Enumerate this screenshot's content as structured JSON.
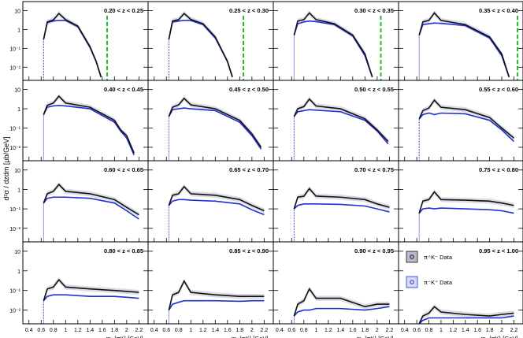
{
  "figure": {
    "ylabel": "d²σ / dzdm [μb/GeV]",
    "xlabel": "m_{πK} [GeV]",
    "yticks": [
      "10",
      "1",
      "10⁻¹",
      "10⁻²"
    ],
    "xticks": [
      "0.4",
      "0.6",
      "0.8",
      "1",
      "1.2",
      "1.4",
      "1.6",
      "1.8",
      "2",
      "2.2"
    ],
    "legend": [
      {
        "label": "π⁺K⁻ Data",
        "color": "#111111"
      },
      {
        "label": "π⁻K⁺ Data",
        "color": "#1f2fd6"
      }
    ],
    "colors": {
      "black_series": "#111111",
      "blue_series": "#1f2fd6",
      "cutoff": "#22bb22",
      "band": "#9a9ab8"
    }
  },
  "chart_data": [
    {
      "type": "line",
      "panel": 1,
      "title": "0.20 < z < 0.25",
      "x": [
        0.64,
        0.7,
        0.8,
        0.89,
        1.0,
        1.2,
        1.4,
        1.5,
        1.58
      ],
      "series": [
        {
          "values": [
            0.3,
            2.5,
            3.2,
            7.0,
            3.3,
            1.5,
            0.12,
            0.02,
            0.003
          ]
        },
        {
          "values": [
            0.3,
            2.3,
            2.8,
            3.0,
            3.0,
            1.4,
            0.11,
            0.02,
            0.003
          ]
        }
      ],
      "cutoff": 1.68,
      "ylim": [
        0.002,
        30
      ],
      "xlim": [
        0.3,
        2.35
      ]
    },
    {
      "type": "line",
      "panel": 2,
      "title": "0.25 < z < 0.30",
      "x": [
        0.64,
        0.7,
        0.8,
        0.89,
        1.0,
        1.2,
        1.4,
        1.6,
        1.68
      ],
      "series": [
        {
          "values": [
            0.3,
            2.8,
            3.3,
            7.0,
            3.4,
            2.0,
            0.4,
            0.02,
            0.003
          ]
        },
        {
          "values": [
            0.3,
            2.5,
            2.8,
            3.0,
            3.0,
            1.8,
            0.35,
            0.02,
            0.003
          ]
        }
      ],
      "cutoff": 1.86,
      "ylim": [
        0.002,
        30
      ],
      "xlim": [
        0.3,
        2.35
      ]
    },
    {
      "type": "line",
      "panel": 3,
      "title": "0.30 < z < 0.35",
      "x": [
        0.64,
        0.7,
        0.8,
        0.89,
        1.0,
        1.3,
        1.6,
        1.8,
        1.92
      ],
      "series": [
        {
          "values": [
            0.5,
            2.8,
            3.3,
            7.5,
            3.3,
            2.0,
            0.5,
            0.05,
            0.003
          ]
        },
        {
          "values": [
            0.5,
            2.0,
            2.5,
            2.8,
            2.6,
            1.8,
            0.45,
            0.04,
            0.003
          ]
        }
      ],
      "cutoff": 2.06,
      "ylim": [
        0.002,
        30
      ],
      "xlim": [
        0.3,
        2.35
      ]
    },
    {
      "type": "line",
      "panel": 4,
      "title": "0.35 < z < 0.40",
      "x": [
        0.64,
        0.7,
        0.8,
        0.89,
        1.0,
        1.4,
        1.8,
        2.0,
        2.12
      ],
      "series": [
        {
          "values": [
            0.5,
            2.5,
            3.0,
            7.5,
            3.0,
            1.8,
            0.4,
            0.05,
            0.003
          ]
        },
        {
          "values": [
            0.5,
            1.8,
            2.0,
            2.2,
            2.1,
            1.6,
            0.35,
            0.04,
            0.003
          ]
        }
      ],
      "cutoff": 2.26,
      "ylim": [
        0.002,
        30
      ],
      "xlim": [
        0.3,
        2.35
      ]
    },
    {
      "type": "line",
      "panel": 5,
      "title": "0.40 < z < 0.45",
      "x": [
        0.64,
        0.7,
        0.8,
        0.89,
        1.0,
        1.4,
        1.8,
        1.9,
        2.0,
        2.12
      ],
      "series": [
        {
          "values": [
            0.5,
            1.5,
            2.0,
            4.5,
            2.0,
            1.2,
            0.25,
            0.08,
            0.04,
            0.005
          ]
        },
        {
          "values": [
            0.5,
            1.2,
            1.4,
            1.5,
            1.4,
            1.0,
            0.2,
            0.07,
            0.03,
            0.004
          ]
        }
      ],
      "ylim": [
        0.002,
        30
      ],
      "xlim": [
        0.3,
        2.35
      ]
    },
    {
      "type": "line",
      "panel": 6,
      "title": "0.45 < z < 0.50",
      "x": [
        0.64,
        0.7,
        0.8,
        0.89,
        1.0,
        1.4,
        1.8,
        2.0,
        2.15
      ],
      "series": [
        {
          "values": [
            0.4,
            1.2,
            1.6,
            3.5,
            1.6,
            1.0,
            0.25,
            0.05,
            0.01
          ]
        },
        {
          "values": [
            0.4,
            0.9,
            1.0,
            1.1,
            1.0,
            0.8,
            0.2,
            0.04,
            0.008
          ]
        }
      ],
      "ylim": [
        0.002,
        30
      ],
      "xlim": [
        0.3,
        2.35
      ]
    },
    {
      "type": "line",
      "panel": 7,
      "title": "0.50 < z < 0.55",
      "x": [
        0.64,
        0.7,
        0.8,
        0.89,
        1.0,
        1.4,
        1.8,
        2.0,
        2.18
      ],
      "series": [
        {
          "values": [
            0.4,
            1.0,
            1.3,
            3.2,
            1.4,
            1.0,
            0.3,
            0.08,
            0.02
          ]
        },
        {
          "values": [
            0.4,
            0.7,
            0.8,
            0.9,
            0.85,
            0.7,
            0.25,
            0.07,
            0.015
          ]
        }
      ],
      "ylim": [
        0.002,
        30
      ],
      "xlim": [
        0.3,
        2.35
      ]
    },
    {
      "type": "line",
      "panel": 8,
      "title": "0.55 < z < 0.60",
      "x": [
        0.64,
        0.7,
        0.8,
        0.89,
        1.0,
        1.4,
        1.8,
        2.0,
        2.2
      ],
      "series": [
        {
          "values": [
            0.3,
            0.8,
            1.1,
            2.8,
            1.2,
            0.9,
            0.35,
            0.1,
            0.03
          ]
        },
        {
          "values": [
            0.3,
            0.5,
            0.6,
            0.5,
            0.6,
            0.55,
            0.25,
            0.08,
            0.02
          ]
        }
      ],
      "ylim": [
        0.002,
        30
      ],
      "xlim": [
        0.3,
        2.35
      ]
    },
    {
      "type": "line",
      "panel": 9,
      "title": "0.60 < z < 0.65",
      "x": [
        0.64,
        0.7,
        0.8,
        0.89,
        1.0,
        1.4,
        1.8,
        2.0,
        2.2
      ],
      "series": [
        {
          "values": [
            0.2,
            0.6,
            0.8,
            1.8,
            0.8,
            0.6,
            0.3,
            0.12,
            0.05
          ]
        },
        {
          "values": [
            0.2,
            0.35,
            0.4,
            0.4,
            0.4,
            0.35,
            0.2,
            0.08,
            0.03
          ]
        }
      ],
      "ylim": [
        0.002,
        30
      ],
      "xlim": [
        0.3,
        2.35
      ]
    },
    {
      "type": "line",
      "panel": 10,
      "title": "0.65 < z < 0.70",
      "x": [
        0.64,
        0.7,
        0.8,
        0.89,
        1.0,
        1.4,
        1.8,
        2.0,
        2.2
      ],
      "series": [
        {
          "values": [
            0.15,
            0.5,
            0.6,
            1.4,
            0.6,
            0.5,
            0.3,
            0.15,
            0.08
          ]
        },
        {
          "values": [
            0.15,
            0.25,
            0.3,
            0.3,
            0.28,
            0.25,
            0.18,
            0.09,
            0.05
          ]
        }
      ],
      "ylim": [
        0.002,
        30
      ],
      "xlim": [
        0.3,
        2.35
      ]
    },
    {
      "type": "line",
      "panel": 11,
      "title": "0.70 < z < 0.75",
      "x": [
        0.64,
        0.7,
        0.8,
        0.89,
        1.0,
        1.4,
        1.8,
        2.0,
        2.2
      ],
      "series": [
        {
          "values": [
            0.1,
            0.4,
            0.45,
            1.1,
            0.45,
            0.4,
            0.3,
            0.18,
            0.12
          ]
        },
        {
          "values": [
            0.1,
            0.15,
            0.18,
            0.18,
            0.18,
            0.17,
            0.14,
            0.1,
            0.07
          ]
        }
      ],
      "ylim": [
        0.002,
        30
      ],
      "xlim": [
        0.3,
        2.35
      ]
    },
    {
      "type": "line",
      "panel": 12,
      "title": "0.75 < z < 0.80",
      "x": [
        0.64,
        0.7,
        0.8,
        0.89,
        1.0,
        1.4,
        1.8,
        2.0,
        2.2
      ],
      "series": [
        {
          "values": [
            0.06,
            0.25,
            0.3,
            0.75,
            0.3,
            0.28,
            0.25,
            0.2,
            0.15
          ]
        },
        {
          "values": [
            0.06,
            0.1,
            0.11,
            0.1,
            0.11,
            0.1,
            0.09,
            0.08,
            0.06
          ]
        }
      ],
      "ylim": [
        0.002,
        30
      ],
      "xlim": [
        0.3,
        2.35
      ]
    },
    {
      "type": "line",
      "panel": 13,
      "title": "0.80 < z < 0.85",
      "x": [
        0.64,
        0.7,
        0.8,
        0.89,
        1.0,
        1.4,
        1.8,
        2.0,
        2.2
      ],
      "series": [
        {
          "values": [
            0.03,
            0.12,
            0.15,
            0.35,
            0.15,
            0.12,
            0.1,
            0.09,
            0.08
          ]
        },
        {
          "values": [
            0.03,
            0.05,
            0.06,
            0.06,
            0.06,
            0.05,
            0.05,
            0.045,
            0.04
          ]
        }
      ],
      "ylim": [
        0.002,
        30
      ],
      "xlim": [
        0.3,
        2.35
      ]
    },
    {
      "type": "line",
      "panel": 14,
      "title": "0.85 < z < 0.90",
      "x": [
        0.64,
        0.7,
        0.8,
        0.89,
        1.0,
        1.4,
        1.8,
        2.0,
        2.2
      ],
      "series": [
        {
          "values": [
            0.01,
            0.06,
            0.08,
            0.3,
            0.08,
            0.06,
            0.05,
            0.05,
            0.05
          ]
        },
        {
          "values": [
            0.01,
            0.02,
            0.025,
            0.03,
            0.03,
            0.03,
            0.028,
            0.03,
            0.03
          ]
        }
      ],
      "ylim": [
        0.002,
        30
      ],
      "xlim": [
        0.3,
        2.35
      ]
    },
    {
      "type": "line",
      "panel": 15,
      "title": "0.90 < z < 0.95",
      "x": [
        0.64,
        0.7,
        0.8,
        0.89,
        1.0,
        1.4,
        1.8,
        2.0,
        2.2
      ],
      "series": [
        {
          "values": [
            0.005,
            0.02,
            0.03,
            0.12,
            0.04,
            0.04,
            0.015,
            0.02,
            0.02
          ]
        },
        {
          "values": [
            0.005,
            0.008,
            0.01,
            0.01,
            0.012,
            0.012,
            0.01,
            0.012,
            0.015
          ]
        }
      ],
      "ylim": [
        0.002,
        30
      ],
      "xlim": [
        0.3,
        2.35
      ]
    },
    {
      "type": "line",
      "panel": 16,
      "title": "0.95 < z < 1.00",
      "x": [
        0.64,
        0.7,
        0.8,
        0.89,
        1.0,
        1.4,
        1.8,
        2.0,
        2.2
      ],
      "series": [
        {
          "values": [
            0.002,
            0.005,
            0.007,
            0.015,
            0.008,
            0.006,
            0.005,
            0.006,
            0.007
          ]
        },
        {
          "values": [
            0.002,
            0.003,
            0.004,
            0.004,
            0.004,
            0.004,
            0.004,
            0.004,
            0.005
          ]
        }
      ],
      "ylim": [
        0.002,
        30
      ],
      "xlim": [
        0.3,
        2.35
      ]
    }
  ]
}
